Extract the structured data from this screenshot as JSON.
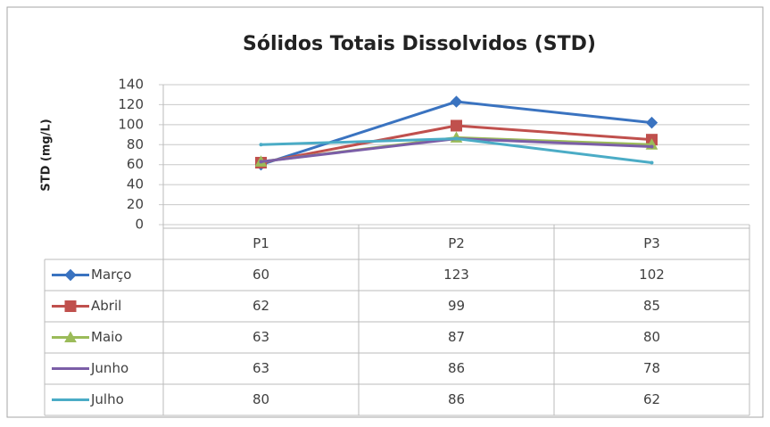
{
  "chart_data": {
    "type": "line",
    "title": "Sólidos Totais Dissolvidos (STD)",
    "y_label": "STD (mg/L)",
    "categories": [
      "P1",
      "P2",
      "P3"
    ],
    "series": [
      {
        "name": "Março",
        "color": "#3a73c0",
        "marker": "diamond",
        "values": [
          60,
          123,
          102
        ]
      },
      {
        "name": "Abril",
        "color": "#c0504d",
        "marker": "square",
        "values": [
          62,
          99,
          85
        ]
      },
      {
        "name": "Maio",
        "color": "#9bbb59",
        "marker": "triangle",
        "values": [
          63,
          87,
          80
        ]
      },
      {
        "name": "Junho",
        "color": "#7b5ea7",
        "marker": "none",
        "values": [
          63,
          86,
          78
        ]
      },
      {
        "name": "Julho",
        "color": "#4bacc6",
        "marker": "none",
        "values": [
          80,
          86,
          62
        ]
      }
    ],
    "ylim": [
      0,
      140
    ],
    "yticks": [
      0,
      20,
      40,
      60,
      80,
      100,
      120,
      140
    ],
    "grid": true
  }
}
